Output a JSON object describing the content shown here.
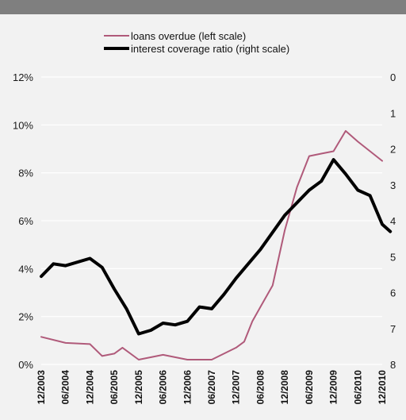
{
  "colors": {
    "background": "#f2f2f2",
    "header_bar": "#7f7f7f",
    "gridline": "#ffffff",
    "loans_series": "#b05a7a",
    "coverage_series": "#000000"
  },
  "chart_data": {
    "type": "line",
    "grid": true,
    "legend_position": "top-center",
    "left_axis": {
      "ticks": [
        "0%",
        "2%",
        "4%",
        "6%",
        "8%",
        "10%",
        "12%"
      ],
      "range": [
        0,
        12
      ]
    },
    "right_axis": {
      "ticks": [
        "0",
        "1",
        "2",
        "3",
        "4",
        "5",
        "6",
        "7",
        "8"
      ],
      "range": [
        0,
        8
      ],
      "inverted": true
    },
    "x_ticks": [
      "12/2003",
      "06/2004",
      "12/2004",
      "06/2005",
      "12/2005",
      "06/2006",
      "12/2006",
      "06/2007",
      "12/2007",
      "06/2008",
      "12/2008",
      "06/2009",
      "12/2009",
      "06/2010",
      "12/2010"
    ],
    "series": [
      {
        "name": "loans overdue (left scale)",
        "axis": "left",
        "points": [
          [
            "12/2003",
            1.15
          ],
          [
            "06/2004",
            0.9
          ],
          [
            "12/2004",
            0.85
          ],
          [
            "03/2005",
            0.35
          ],
          [
            "06/2005",
            0.45
          ],
          [
            "08/2005",
            0.7
          ],
          [
            "12/2005",
            0.2
          ],
          [
            "06/2006",
            0.4
          ],
          [
            "12/2006",
            0.2
          ],
          [
            "06/2007",
            0.2
          ],
          [
            "12/2007",
            0.7
          ],
          [
            "02/2008",
            0.95
          ],
          [
            "04/2008",
            1.8
          ],
          [
            "06/2008",
            2.4
          ],
          [
            "09/2008",
            3.3
          ],
          [
            "12/2008",
            5.6
          ],
          [
            "03/2009",
            7.4
          ],
          [
            "06/2009",
            8.7
          ],
          [
            "09/2009",
            8.8
          ],
          [
            "12/2009",
            8.9
          ],
          [
            "03/2010",
            9.75
          ],
          [
            "06/2010",
            9.3
          ],
          [
            "12/2010",
            8.5
          ]
        ]
      },
      {
        "name": "interest coverage ratio (right scale)",
        "axis": "right",
        "points": [
          [
            "12/2003",
            5.55
          ],
          [
            "03/2004",
            5.2
          ],
          [
            "06/2004",
            5.25
          ],
          [
            "12/2004",
            5.05
          ],
          [
            "03/2005",
            5.3
          ],
          [
            "06/2005",
            5.9
          ],
          [
            "09/2005",
            6.45
          ],
          [
            "12/2005",
            7.15
          ],
          [
            "03/2006",
            7.05
          ],
          [
            "06/2006",
            6.85
          ],
          [
            "09/2006",
            6.9
          ],
          [
            "12/2006",
            6.8
          ],
          [
            "03/2007",
            6.4
          ],
          [
            "06/2007",
            6.45
          ],
          [
            "09/2007",
            6.05
          ],
          [
            "12/2007",
            5.6
          ],
          [
            "06/2008",
            4.8
          ],
          [
            "12/2008",
            3.85
          ],
          [
            "06/2009",
            3.15
          ],
          [
            "09/2009",
            2.9
          ],
          [
            "12/2009",
            2.3
          ],
          [
            "03/2010",
            2.7
          ],
          [
            "06/2010",
            3.15
          ],
          [
            "09/2010",
            3.3
          ],
          [
            "12/2010",
            4.1
          ],
          [
            "02/2011",
            4.3
          ]
        ]
      }
    ]
  }
}
